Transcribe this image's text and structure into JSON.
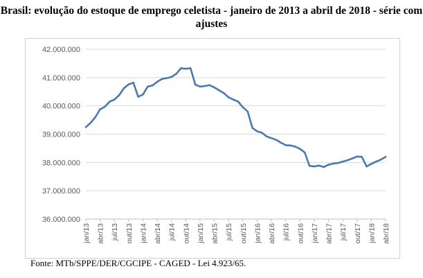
{
  "title": "Brasil: evolução do estoque de emprego celetista - janeiro de 2013 a abril de 2018 - série com ajustes",
  "source": "Fonte: MTb/SPPE/DER/CGCIPE - CAGED - Lei 4.923/65.",
  "colors": {
    "line": "#4a79b0",
    "grid": "#d9d9d9",
    "axis": "#bfbfbf",
    "text": "#595959"
  },
  "chart_data": {
    "type": "line",
    "title": "Brasil: evolução do estoque de emprego celetista - janeiro de 2013 a abril de 2018 - série com ajustes",
    "xlabel": "",
    "ylabel": "",
    "ylim": [
      36000000,
      42000000
    ],
    "yticks": [
      36000000,
      37000000,
      38000000,
      39000000,
      40000000,
      41000000,
      42000000
    ],
    "ytick_labels": [
      "36.000.000",
      "37.000.000",
      "38.000.000",
      "39.000.000",
      "40.000.000",
      "41.000.000",
      "42.000.000"
    ],
    "x_tick_labels": [
      "jan/13",
      "abr/13",
      "jul/13",
      "out/13",
      "jan/14",
      "abr/14",
      "jul/14",
      "out/14",
      "jan/15",
      "abr/15",
      "jul/15",
      "out/15",
      "jan/16",
      "abr/16",
      "jul/16",
      "out/16",
      "jan/17",
      "abr/17",
      "jul/17",
      "out/17",
      "jan/18",
      "abr/18"
    ],
    "grid": true,
    "series": [
      {
        "name": "Estoque de emprego celetista",
        "values": [
          39250000,
          39400000,
          39600000,
          39880000,
          39970000,
          40150000,
          40220000,
          40380000,
          40620000,
          40760000,
          40820000,
          40320000,
          40400000,
          40680000,
          40720000,
          40850000,
          40950000,
          40980000,
          41020000,
          41130000,
          41330000,
          41310000,
          41330000,
          40750000,
          40680000,
          40700000,
          40730000,
          40650000,
          40550000,
          40450000,
          40300000,
          40220000,
          40150000,
          39950000,
          39800000,
          39220000,
          39100000,
          39050000,
          38920000,
          38860000,
          38800000,
          38700000,
          38610000,
          38600000,
          38560000,
          38480000,
          38350000,
          37880000,
          37860000,
          37890000,
          37840000,
          37920000,
          37960000,
          37980000,
          38030000,
          38080000,
          38140000,
          38210000,
          38200000,
          37860000,
          37950000,
          38030000,
          38100000,
          38200000
        ]
      }
    ]
  }
}
